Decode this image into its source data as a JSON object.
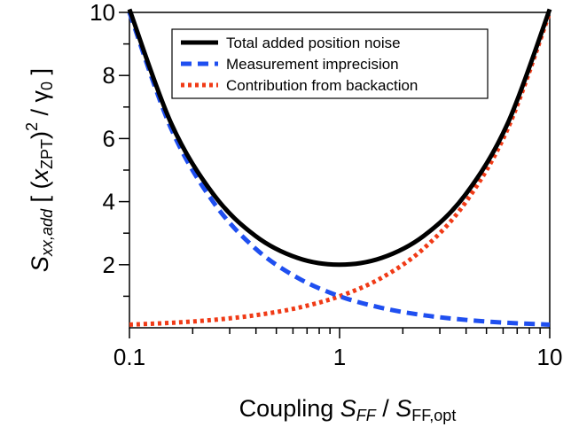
{
  "chart_data": {
    "type": "line",
    "x_scale": "log",
    "xlim": [
      0.1,
      10
    ],
    "ylim": [
      0,
      10
    ],
    "x_ticks": [
      {
        "value": 0.1,
        "label": "0.1"
      },
      {
        "value": 1,
        "label": "1"
      },
      {
        "value": 10,
        "label": "10"
      }
    ],
    "y_ticks": [
      {
        "value": 2,
        "label": "2"
      },
      {
        "value": 4,
        "label": "4"
      },
      {
        "value": 6,
        "label": "6"
      },
      {
        "value": 8,
        "label": "8"
      },
      {
        "value": 10,
        "label": "10"
      }
    ],
    "xlabel": {
      "text": "Coupling ",
      "var1": "S",
      "sub1": "FF",
      "sep": " / ",
      "var2": "S",
      "sub2": "FF,opt"
    },
    "ylabel": {
      "var": "S",
      "sub": "xx,add",
      "open": "  [ (",
      "xvar": "x",
      "xsub": "ZPT",
      "close": ")",
      "sup": "2",
      "divider": " / ",
      "gamma": "γ",
      "gamma_sub": "0",
      "end": " ]"
    },
    "x": [
      0.1,
      0.158,
      0.251,
      0.398,
      0.631,
      1,
      1.585,
      2.512,
      3.981,
      6.31,
      10
    ],
    "series": [
      {
        "name": "Total added position noise",
        "color": "#000000",
        "style": "solid",
        "values": [
          10.1,
          6.48,
          4.23,
          2.91,
          2.215,
          2.0,
          2.215,
          2.91,
          4.23,
          6.48,
          10.1
        ]
      },
      {
        "name": "Measurement imprecision",
        "color": "#1f4ff0",
        "style": "dashed",
        "values": [
          10.0,
          6.31,
          3.98,
          2.51,
          1.585,
          1.0,
          0.631,
          0.398,
          0.251,
          0.158,
          0.1
        ]
      },
      {
        "name": "Contribution from backaction",
        "color": "#f03a16",
        "style": "dotted",
        "values": [
          0.1,
          0.158,
          0.251,
          0.398,
          0.631,
          1.0,
          1.585,
          2.512,
          3.981,
          6.31,
          10.0
        ]
      }
    ],
    "legend_position": "top-right",
    "grid": false
  }
}
